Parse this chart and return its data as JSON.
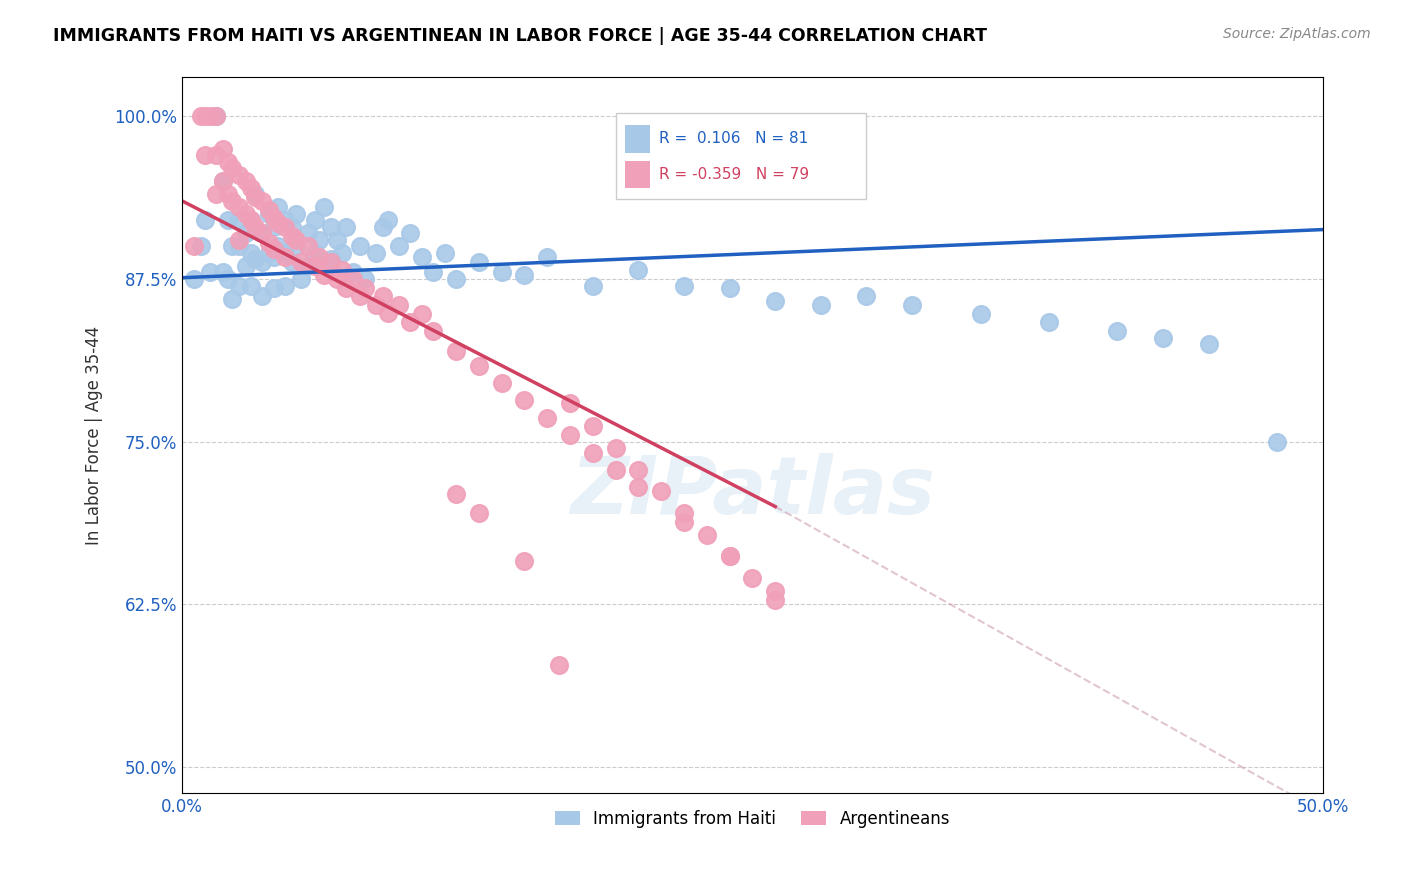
{
  "title": "IMMIGRANTS FROM HAITI VS ARGENTINEAN IN LABOR FORCE | AGE 35-44 CORRELATION CHART",
  "source": "Source: ZipAtlas.com",
  "ylabel": "In Labor Force | Age 35-44",
  "xlim": [
    0.0,
    0.5
  ],
  "ylim": [
    0.48,
    1.03
  ],
  "yticks": [
    0.5,
    0.625,
    0.75,
    0.875,
    1.0
  ],
  "ytick_labels": [
    "50.0%",
    "62.5%",
    "75.0%",
    "87.5%",
    "100.0%"
  ],
  "xticks": [
    0.0,
    0.1,
    0.2,
    0.3,
    0.4,
    0.5
  ],
  "xtick_labels": [
    "0.0%",
    "",
    "",
    "",
    "",
    "50.0%"
  ],
  "haiti_color": "#a8c8e8",
  "argentina_color": "#f0a0b8",
  "haiti_line_color": "#2060c0",
  "argentina_line_color": "#d04060",
  "R_haiti": 0.106,
  "N_haiti": 81,
  "R_argentina": -0.359,
  "N_argentina": 79,
  "haiti_scatter_x": [
    0.005,
    0.008,
    0.01,
    0.012,
    0.015,
    0.015,
    0.018,
    0.018,
    0.02,
    0.02,
    0.022,
    0.022,
    0.025,
    0.025,
    0.025,
    0.028,
    0.028,
    0.03,
    0.03,
    0.03,
    0.032,
    0.032,
    0.035,
    0.035,
    0.035,
    0.038,
    0.038,
    0.04,
    0.04,
    0.04,
    0.042,
    0.042,
    0.045,
    0.045,
    0.045,
    0.048,
    0.048,
    0.05,
    0.05,
    0.052,
    0.055,
    0.055,
    0.058,
    0.058,
    0.06,
    0.062,
    0.065,
    0.065,
    0.068,
    0.07,
    0.072,
    0.075,
    0.078,
    0.08,
    0.085,
    0.088,
    0.09,
    0.095,
    0.1,
    0.105,
    0.11,
    0.115,
    0.12,
    0.13,
    0.14,
    0.15,
    0.16,
    0.18,
    0.2,
    0.22,
    0.24,
    0.26,
    0.28,
    0.3,
    0.32,
    0.35,
    0.38,
    0.41,
    0.43,
    0.45,
    0.48
  ],
  "haiti_scatter_y": [
    0.875,
    0.9,
    0.92,
    0.88,
    1.0,
    1.0,
    0.95,
    0.88,
    0.92,
    0.875,
    0.9,
    0.86,
    0.92,
    0.9,
    0.87,
    0.91,
    0.885,
    0.92,
    0.895,
    0.87,
    0.94,
    0.89,
    0.91,
    0.888,
    0.862,
    0.925,
    0.895,
    0.915,
    0.892,
    0.868,
    0.93,
    0.9,
    0.92,
    0.895,
    0.87,
    0.915,
    0.888,
    0.925,
    0.9,
    0.875,
    0.91,
    0.885,
    0.92,
    0.895,
    0.905,
    0.93,
    0.915,
    0.89,
    0.905,
    0.895,
    0.915,
    0.88,
    0.9,
    0.875,
    0.895,
    0.915,
    0.92,
    0.9,
    0.91,
    0.892,
    0.88,
    0.895,
    0.875,
    0.888,
    0.88,
    0.878,
    0.892,
    0.87,
    0.882,
    0.87,
    0.868,
    0.858,
    0.855,
    0.862,
    0.855,
    0.848,
    0.842,
    0.835,
    0.83,
    0.825,
    0.75
  ],
  "argentina_scatter_x": [
    0.005,
    0.008,
    0.01,
    0.01,
    0.012,
    0.015,
    0.015,
    0.015,
    0.018,
    0.018,
    0.02,
    0.02,
    0.022,
    0.022,
    0.025,
    0.025,
    0.025,
    0.028,
    0.028,
    0.03,
    0.03,
    0.032,
    0.032,
    0.035,
    0.035,
    0.038,
    0.038,
    0.04,
    0.04,
    0.042,
    0.045,
    0.045,
    0.048,
    0.05,
    0.052,
    0.055,
    0.058,
    0.06,
    0.062,
    0.065,
    0.068,
    0.07,
    0.072,
    0.075,
    0.078,
    0.08,
    0.085,
    0.088,
    0.09,
    0.095,
    0.1,
    0.105,
    0.11,
    0.12,
    0.13,
    0.14,
    0.15,
    0.16,
    0.17,
    0.18,
    0.19,
    0.2,
    0.22,
    0.24,
    0.26,
    0.17,
    0.18,
    0.19,
    0.2,
    0.21,
    0.22,
    0.23,
    0.24,
    0.25,
    0.26,
    0.12,
    0.13,
    0.15,
    0.165
  ],
  "argentina_scatter_y": [
    0.9,
    1.0,
    1.0,
    0.97,
    1.0,
    1.0,
    0.97,
    0.94,
    0.975,
    0.95,
    0.965,
    0.94,
    0.96,
    0.935,
    0.955,
    0.93,
    0.905,
    0.95,
    0.925,
    0.945,
    0.92,
    0.938,
    0.915,
    0.935,
    0.91,
    0.928,
    0.903,
    0.922,
    0.898,
    0.918,
    0.915,
    0.892,
    0.908,
    0.905,
    0.888,
    0.9,
    0.885,
    0.892,
    0.878,
    0.888,
    0.875,
    0.882,
    0.868,
    0.875,
    0.862,
    0.868,
    0.855,
    0.862,
    0.849,
    0.855,
    0.842,
    0.848,
    0.835,
    0.82,
    0.808,
    0.795,
    0.782,
    0.768,
    0.755,
    0.741,
    0.728,
    0.715,
    0.688,
    0.662,
    0.635,
    0.78,
    0.762,
    0.745,
    0.728,
    0.712,
    0.695,
    0.678,
    0.662,
    0.645,
    0.628,
    0.71,
    0.695,
    0.658,
    0.578
  ]
}
